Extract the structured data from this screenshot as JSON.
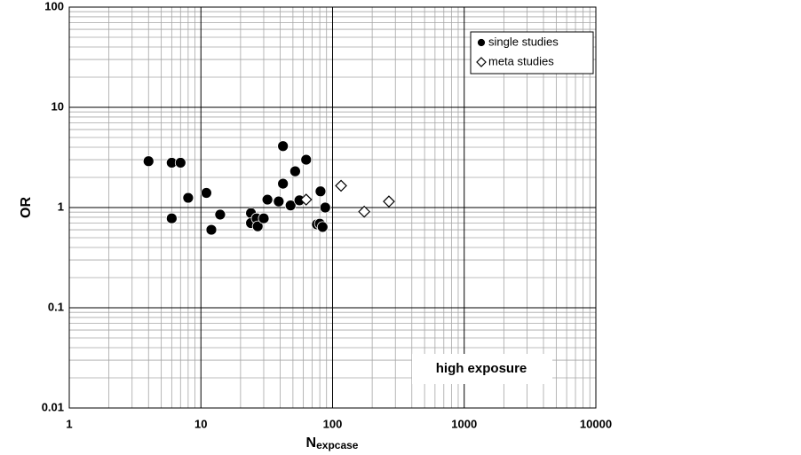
{
  "chart_data": {
    "type": "scatter",
    "x_label": {
      "main": "N",
      "sub": "expcase"
    },
    "y_label": "OR",
    "log_x": true,
    "log_y": true,
    "grid": true,
    "minor_grid": true,
    "xlim": [
      1,
      10000
    ],
    "xticks": [
      1,
      10,
      100,
      1000,
      10000
    ],
    "ylim": [
      0.01,
      100
    ],
    "yticks": [
      0.01,
      0.1,
      1,
      10,
      100
    ],
    "legend": "top-right",
    "annotation": "high exposure",
    "series": [
      {
        "name": "single studies",
        "marker": "circle",
        "color": "#000000",
        "x": [
          4,
          6,
          7,
          8,
          6,
          11,
          12,
          14,
          24,
          24,
          26.5,
          27,
          30,
          32,
          39,
          42,
          42,
          48,
          52,
          56,
          63,
          76,
          80,
          81,
          84,
          88
        ],
        "y": [
          2.9,
          2.8,
          2.8,
          1.25,
          0.78,
          1.4,
          0.6,
          0.85,
          0.88,
          0.7,
          0.78,
          0.65,
          0.78,
          1.2,
          1.15,
          4.1,
          1.73,
          1.05,
          2.3,
          1.18,
          3.0,
          0.68,
          0.69,
          1.45,
          0.64,
          1.0
        ]
      },
      {
        "name": "meta studies",
        "marker": "diamond",
        "color": "#000000",
        "x": [
          63,
          116,
          174,
          268
        ],
        "y": [
          1.2,
          1.65,
          0.91,
          1.15
        ]
      }
    ]
  }
}
